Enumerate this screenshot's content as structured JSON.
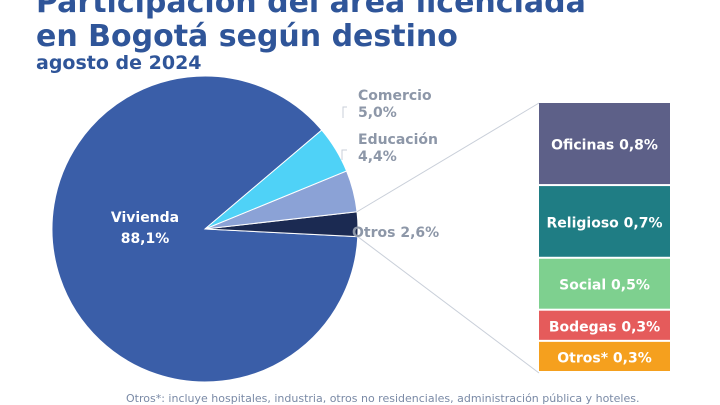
{
  "chart_data": {
    "type": "pie",
    "title_lines": [
      "Participación del área licenciada",
      "en Bogotá según destino"
    ],
    "subtitle": "agosto de 2024",
    "slices": [
      {
        "label": "Vivienda",
        "value_text": "88,1%",
        "value": 88.1,
        "color": "#3a5ea8"
      },
      {
        "label": "Otros",
        "value_text": "2,6%",
        "value": 2.6,
        "color": "#1b2a52"
      },
      {
        "label": "Educación",
        "value_text": "4,4%",
        "value": 4.4,
        "color": "#8ba2d6"
      },
      {
        "label": "Comercio",
        "value_text": "5,0%",
        "value": 5.0,
        "color": "#4fd2f7"
      }
    ],
    "breakdown_of": "Otros",
    "breakdown": [
      {
        "label": "Oficinas",
        "value_text": "0,8%",
        "value": 0.8,
        "color": "#5d6088"
      },
      {
        "label": "Religioso",
        "value_text": "0,7%",
        "value": 0.7,
        "color": "#1f7d84"
      },
      {
        "label": "Social",
        "value_text": "0,5%",
        "value": 0.5,
        "color": "#7ed08f"
      },
      {
        "label": "Bodegas",
        "value_text": "0,3%",
        "value": 0.3,
        "color": "#e55b5b"
      },
      {
        "label": "Otros*",
        "value_text": "0,3%",
        "value": 0.3,
        "color": "#f5a01e"
      }
    ],
    "footnote": "Otros*: incluye hospitales, industria, otros no residenciales, administración pública y hoteles."
  }
}
